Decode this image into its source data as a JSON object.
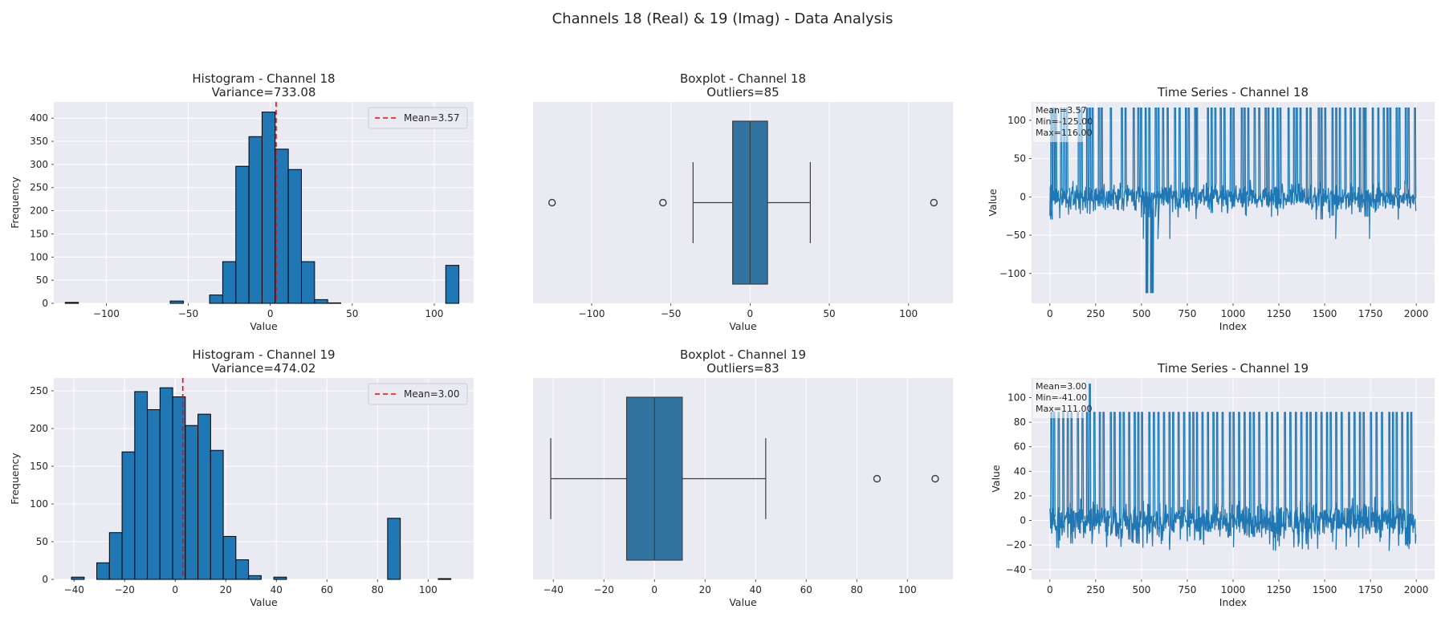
{
  "figure": {
    "title": "Channels 18 (Real) & 19 (Imag) - Data Analysis",
    "colors": {
      "background": "#eaeaf2",
      "bar": "#1f77b4",
      "mean_line": "#ff0000",
      "grid": "#ffffff",
      "text": "#262626"
    }
  },
  "chart_data": [
    {
      "id": "hist18",
      "type": "bar",
      "title": "Histogram - Channel 18",
      "subtitle": "Variance=733.08",
      "xlabel": "Value",
      "ylabel": "Frequency",
      "xlim": [
        -132,
        124
      ],
      "ylim": [
        0,
        435
      ],
      "xticks": [
        -100,
        -50,
        0,
        50,
        100
      ],
      "yticks": [
        0,
        50,
        100,
        150,
        200,
        250,
        300,
        350,
        400
      ],
      "bin_edges": [
        -125,
        -117,
        -109,
        -101,
        -93,
        -85,
        -77,
        -69,
        -61,
        -53,
        -45,
        -37,
        -29,
        -21,
        -13,
        -5,
        3,
        11,
        19,
        27,
        35,
        43,
        51,
        59,
        67,
        75,
        83,
        91,
        99,
        107,
        115
      ],
      "counts": [
        2,
        0,
        0,
        0,
        0,
        0,
        0,
        0,
        5,
        0,
        0,
        18,
        90,
        296,
        360,
        413,
        333,
        289,
        90,
        8,
        1,
        0,
        0,
        0,
        0,
        0,
        0,
        0,
        0,
        82
      ],
      "mean": 3.57,
      "legend": {
        "label": "Mean=3.57",
        "position": "top-right"
      },
      "grid": true
    },
    {
      "id": "box18",
      "type": "boxplot",
      "title": "Boxplot - Channel 18",
      "subtitle": "Outliers=85",
      "xlabel": "Value",
      "xlim": [
        -137,
        128
      ],
      "xticks": [
        -100,
        -50,
        0,
        50,
        100
      ],
      "q1": -11,
      "median": 0,
      "q3": 11,
      "whisker_low": -36,
      "whisker_high": 38,
      "outliers": [
        -125,
        -55,
        116
      ],
      "grid": true
    },
    {
      "id": "ts18",
      "type": "line",
      "title": "Time Series - Channel 18",
      "xlabel": "Index",
      "ylabel": "Value",
      "xlim": [
        -100,
        2100
      ],
      "ylim": [
        -139,
        124
      ],
      "xticks": [
        0,
        250,
        500,
        750,
        1000,
        1250,
        1500,
        1750,
        2000
      ],
      "yticks": [
        -100,
        -50,
        0,
        50,
        100
      ],
      "n_points": 2000,
      "noise_band": [
        -30,
        25
      ],
      "spike_high": 116,
      "spike_low": -125,
      "spikes_high_at": [
        5,
        18,
        30,
        58,
        75,
        90,
        155,
        170,
        200,
        215,
        230,
        265,
        280,
        330,
        390,
        410,
        455,
        480,
        495,
        520,
        540,
        575,
        590,
        615,
        640,
        680,
        705,
        740,
        755,
        790,
        800,
        860,
        880,
        900,
        930,
        950,
        985,
        1000,
        1045,
        1060,
        1080,
        1115,
        1140,
        1175,
        1190,
        1215,
        1240,
        1255,
        1300,
        1330,
        1345,
        1365,
        1400,
        1420,
        1465,
        1480,
        1500,
        1540,
        1560,
        1580,
        1610,
        1640,
        1660,
        1690,
        1710,
        1720,
        1760,
        1790,
        1820,
        1840,
        1855,
        1890,
        1905,
        1940,
        1955,
        1990,
        2000
      ],
      "spikes_low_at": [
        525,
        530,
        550,
        560
      ],
      "dips_at": [
        [
          510,
          -55
        ],
        [
          590,
          -55
        ],
        [
          655,
          -55
        ],
        [
          1560,
          -55
        ],
        [
          1745,
          -55
        ]
      ],
      "stats_box": {
        "mean": "Mean=3.57",
        "min": "Min=-125.00",
        "max": "Max=116.00"
      },
      "grid": true
    },
    {
      "id": "hist19",
      "type": "bar",
      "title": "Histogram - Channel 19",
      "subtitle": "Variance=474.02",
      "xlabel": "Value",
      "ylabel": "Frequency",
      "xlim": [
        -48,
        118
      ],
      "ylim": [
        0,
        267
      ],
      "xticks": [
        -40,
        -20,
        0,
        20,
        40,
        60,
        80,
        100
      ],
      "yticks": [
        0,
        50,
        100,
        150,
        200,
        250
      ],
      "bin_edges": [
        -41,
        -36,
        -31,
        -26,
        -21,
        -16,
        -11,
        -6,
        -1,
        4,
        9,
        14,
        19,
        24,
        29,
        34,
        39,
        44,
        49,
        54,
        59,
        64,
        69,
        74,
        79,
        84,
        89,
        94,
        99,
        104,
        109
      ],
      "counts": [
        3,
        0,
        22,
        62,
        169,
        249,
        225,
        254,
        242,
        204,
        219,
        171,
        57,
        26,
        5,
        0,
        3,
        0,
        0,
        0,
        0,
        0,
        0,
        0,
        0,
        81,
        0,
        0,
        0,
        1
      ],
      "mean": 3.0,
      "legend": {
        "label": "Mean=3.00",
        "position": "top-right"
      },
      "grid": true
    },
    {
      "id": "box19",
      "type": "boxplot",
      "title": "Boxplot - Channel 19",
      "subtitle": "Outliers=83",
      "xlabel": "Value",
      "xlim": [
        -48,
        118
      ],
      "xticks": [
        -40,
        -20,
        0,
        20,
        40,
        60,
        80,
        100
      ],
      "q1": -11,
      "median": 0,
      "q3": 11,
      "whisker_low": -41,
      "whisker_high": 44,
      "outliers": [
        88,
        111
      ],
      "grid": true
    },
    {
      "id": "ts19",
      "type": "line",
      "title": "Time Series - Channel 19",
      "xlabel": "Index",
      "ylabel": "Value",
      "xlim": [
        -100,
        2100
      ],
      "ylim": [
        -48,
        116
      ],
      "xticks": [
        0,
        250,
        500,
        750,
        1000,
        1250,
        1500,
        1750,
        2000
      ],
      "yticks": [
        -40,
        -20,
        0,
        20,
        40,
        60,
        80,
        100
      ],
      "n_points": 2000,
      "noise_band": [
        -25,
        22
      ],
      "spike_high": 88,
      "spikes_high_at": [
        5,
        20,
        45,
        70,
        95,
        115,
        150,
        175,
        200,
        215,
        240,
        270,
        290,
        330,
        350,
        380,
        400,
        430,
        460,
        480,
        500,
        540,
        565,
        590,
        620,
        650,
        670,
        700,
        730,
        760,
        780,
        800,
        830,
        860,
        890,
        910,
        940,
        980,
        1000,
        1030,
        1060,
        1090,
        1110,
        1140,
        1180,
        1210,
        1240,
        1280,
        1310,
        1340,
        1370,
        1400,
        1420,
        1450,
        1480,
        1510,
        1530,
        1560,
        1590,
        1630,
        1660,
        1690,
        1710,
        1750,
        1780,
        1810,
        1850,
        1870,
        1890,
        1920,
        1950,
        1970
      ],
      "spike_max_at": [
        215,
        111
      ],
      "stats_box": {
        "mean": "Mean=3.00",
        "min": "Min=-41.00",
        "max": "Max=111.00"
      },
      "grid": true
    }
  ]
}
